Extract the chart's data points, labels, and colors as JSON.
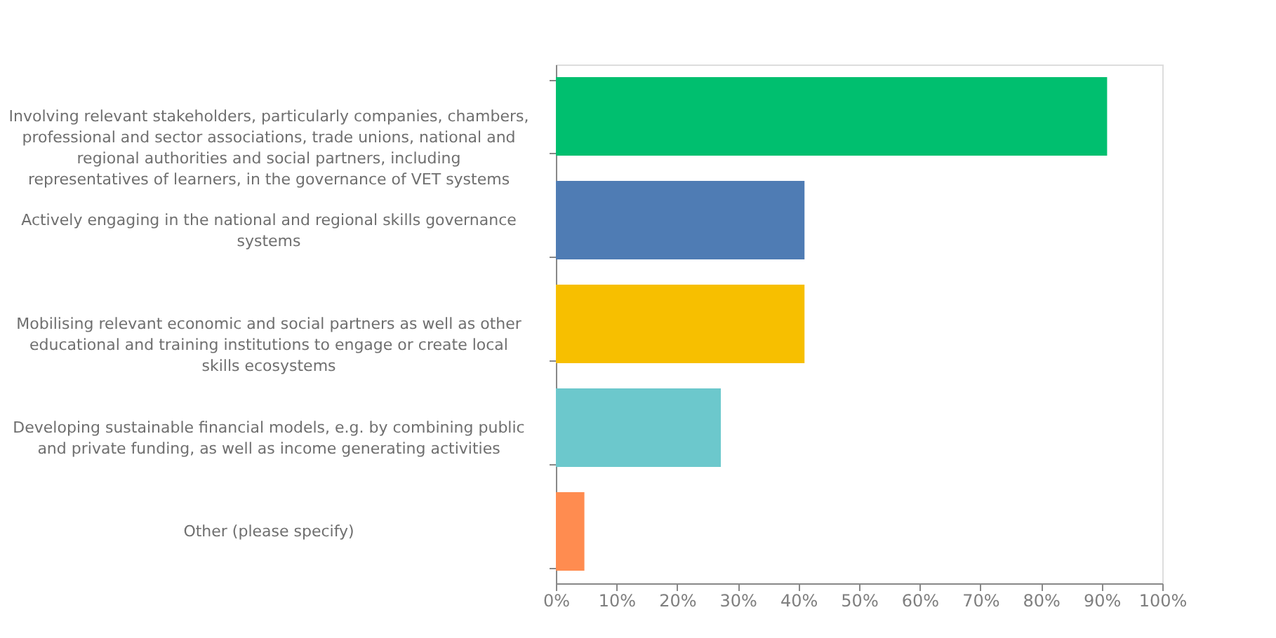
{
  "chart_data": {
    "type": "bar",
    "orientation": "horizontal",
    "categories": [
      "Involving relevant stakeholders, particularly companies, chambers, professional and sector associations, trade unions, national and regional authorities and social partners, including representatives of learners, in the governance of VET systems",
      "Actively engaging in the national and regional skills governance systems",
      "Mobilising relevant economic and social partners as well as other educational and training institutions to engage or create local skills ecosystems",
      "Developing sustainable financial models, e.g. by combining public and private funding, as well as income generating activities",
      "Other (please specify)"
    ],
    "values": [
      90.9,
      41.0,
      41.0,
      27.2,
      4.7
    ],
    "colors": [
      "#00bf6f",
      "#4f7cb4",
      "#f7bf00",
      "#6cc8cc",
      "#ff8c50"
    ],
    "xlim": [
      0,
      100
    ],
    "xticks": [
      {
        "value": 0,
        "label": "0%"
      },
      {
        "value": 10,
        "label": "10%"
      },
      {
        "value": 20,
        "label": "20%"
      },
      {
        "value": 30,
        "label": "30%"
      },
      {
        "value": 40,
        "label": "40%"
      },
      {
        "value": 50,
        "label": "50%"
      },
      {
        "value": 60,
        "label": "60%"
      },
      {
        "value": 70,
        "label": "70%"
      },
      {
        "value": 80,
        "label": "80%"
      },
      {
        "value": 90,
        "label": "90%"
      },
      {
        "value": 100,
        "label": "100%"
      }
    ],
    "grid": false
  }
}
